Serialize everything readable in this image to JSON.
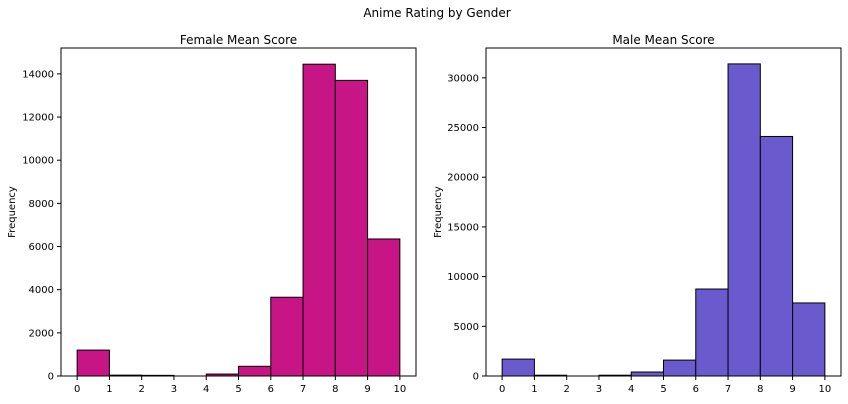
{
  "figure": {
    "suptitle": "Anime Rating by Gender"
  },
  "chart_data": [
    {
      "type": "bar",
      "title": "Female Mean Score",
      "xlabel": "",
      "ylabel": "Frequency",
      "bin_edges": [
        0,
        1,
        2,
        3,
        4,
        5,
        6,
        7,
        8,
        9,
        10
      ],
      "values": [
        1200,
        40,
        30,
        0,
        90,
        450,
        3650,
        14450,
        13700,
        6350
      ],
      "xlim": [
        -0.5,
        10.5
      ],
      "ylim": [
        0,
        15200
      ],
      "xticks": [
        0,
        1,
        2,
        3,
        4,
        5,
        6,
        7,
        8,
        9,
        10
      ],
      "yticks": [
        0,
        2000,
        4000,
        6000,
        8000,
        10000,
        12000,
        14000
      ],
      "bar_color": "#c71585",
      "edge_color": "#000000",
      "grid": false
    },
    {
      "type": "bar",
      "title": "Male Mean Score",
      "xlabel": "",
      "ylabel": "Frequency",
      "bin_edges": [
        0,
        1,
        2,
        3,
        4,
        5,
        6,
        7,
        8,
        9,
        10
      ],
      "values": [
        1700,
        80,
        0,
        80,
        400,
        1600,
        8750,
        31400,
        24100,
        7350
      ],
      "xlim": [
        -0.5,
        10.5
      ],
      "ylim": [
        0,
        33000
      ],
      "xticks": [
        0,
        1,
        2,
        3,
        4,
        5,
        6,
        7,
        8,
        9,
        10
      ],
      "yticks": [
        0,
        5000,
        10000,
        15000,
        20000,
        25000,
        30000
      ],
      "bar_color": "#6a5acd",
      "edge_color": "#000000",
      "grid": false
    }
  ]
}
